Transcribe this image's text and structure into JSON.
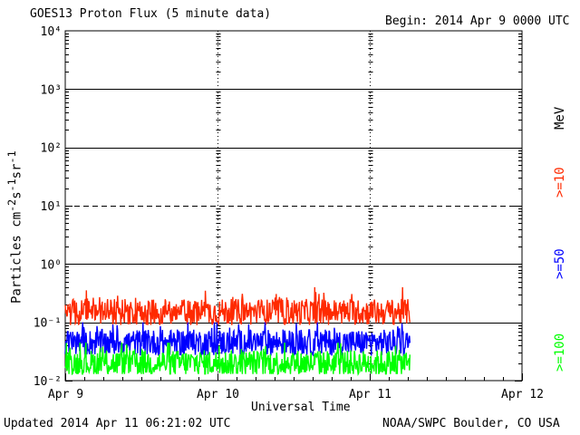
{
  "header": {
    "title": "GOES13 Proton Flux (5 minute data)",
    "begin": "Begin: 2014 Apr 9 0000 UTC"
  },
  "footer": {
    "updated": "Updated 2014 Apr 11 06:21:02 UTC",
    "credit": "NOAA/SWPC Boulder, CO USA"
  },
  "right_labels": {
    "unit": "MeV",
    "e10": ">=10",
    "e50": ">=50",
    "e100": ">=100"
  },
  "colors": {
    "e10": "#ff2a00",
    "e50": "#0000ff",
    "e100": "#00ff00",
    "axis": "#000000"
  },
  "chart_data": {
    "type": "line",
    "title": "GOES13 Proton Flux (5 minute data)",
    "xlabel": "Universal Time",
    "ylabel": "Particles cm⁻²s⁻¹sr⁻¹",
    "xlim": [
      "2014-04-09 00:00",
      "2014-04-12 00:00"
    ],
    "x_ticks": [
      "Apr 9",
      "Apr 10",
      "Apr 11",
      "Apr 12"
    ],
    "y_scale": "log",
    "ylim": [
      0.01,
      10000
    ],
    "y_ticks": [
      "10⁴",
      "10³",
      "10²",
      "10¹",
      "10⁰",
      "10⁻¹",
      "10⁻²"
    ],
    "horizontal_lines": [
      {
        "value": 1000,
        "style": "solid"
      },
      {
        "value": 100,
        "style": "solid"
      },
      {
        "value": 10,
        "style": "dashed"
      },
      {
        "value": 1,
        "style": "solid"
      },
      {
        "value": 0.1,
        "style": "solid"
      }
    ],
    "data_end": "2014-04-11 06:20",
    "series": [
      {
        "name": ">=10",
        "color": "#ff2a00",
        "values_approx_range": [
          0.08,
          0.4
        ],
        "typical": 0.15
      },
      {
        "name": ">=50",
        "color": "#0000ff",
        "values_approx_range": [
          0.025,
          0.1
        ],
        "typical": 0.045
      },
      {
        "name": ">=100",
        "color": "#00ff00",
        "values_approx_range": [
          0.013,
          0.045
        ],
        "typical": 0.02
      }
    ]
  }
}
